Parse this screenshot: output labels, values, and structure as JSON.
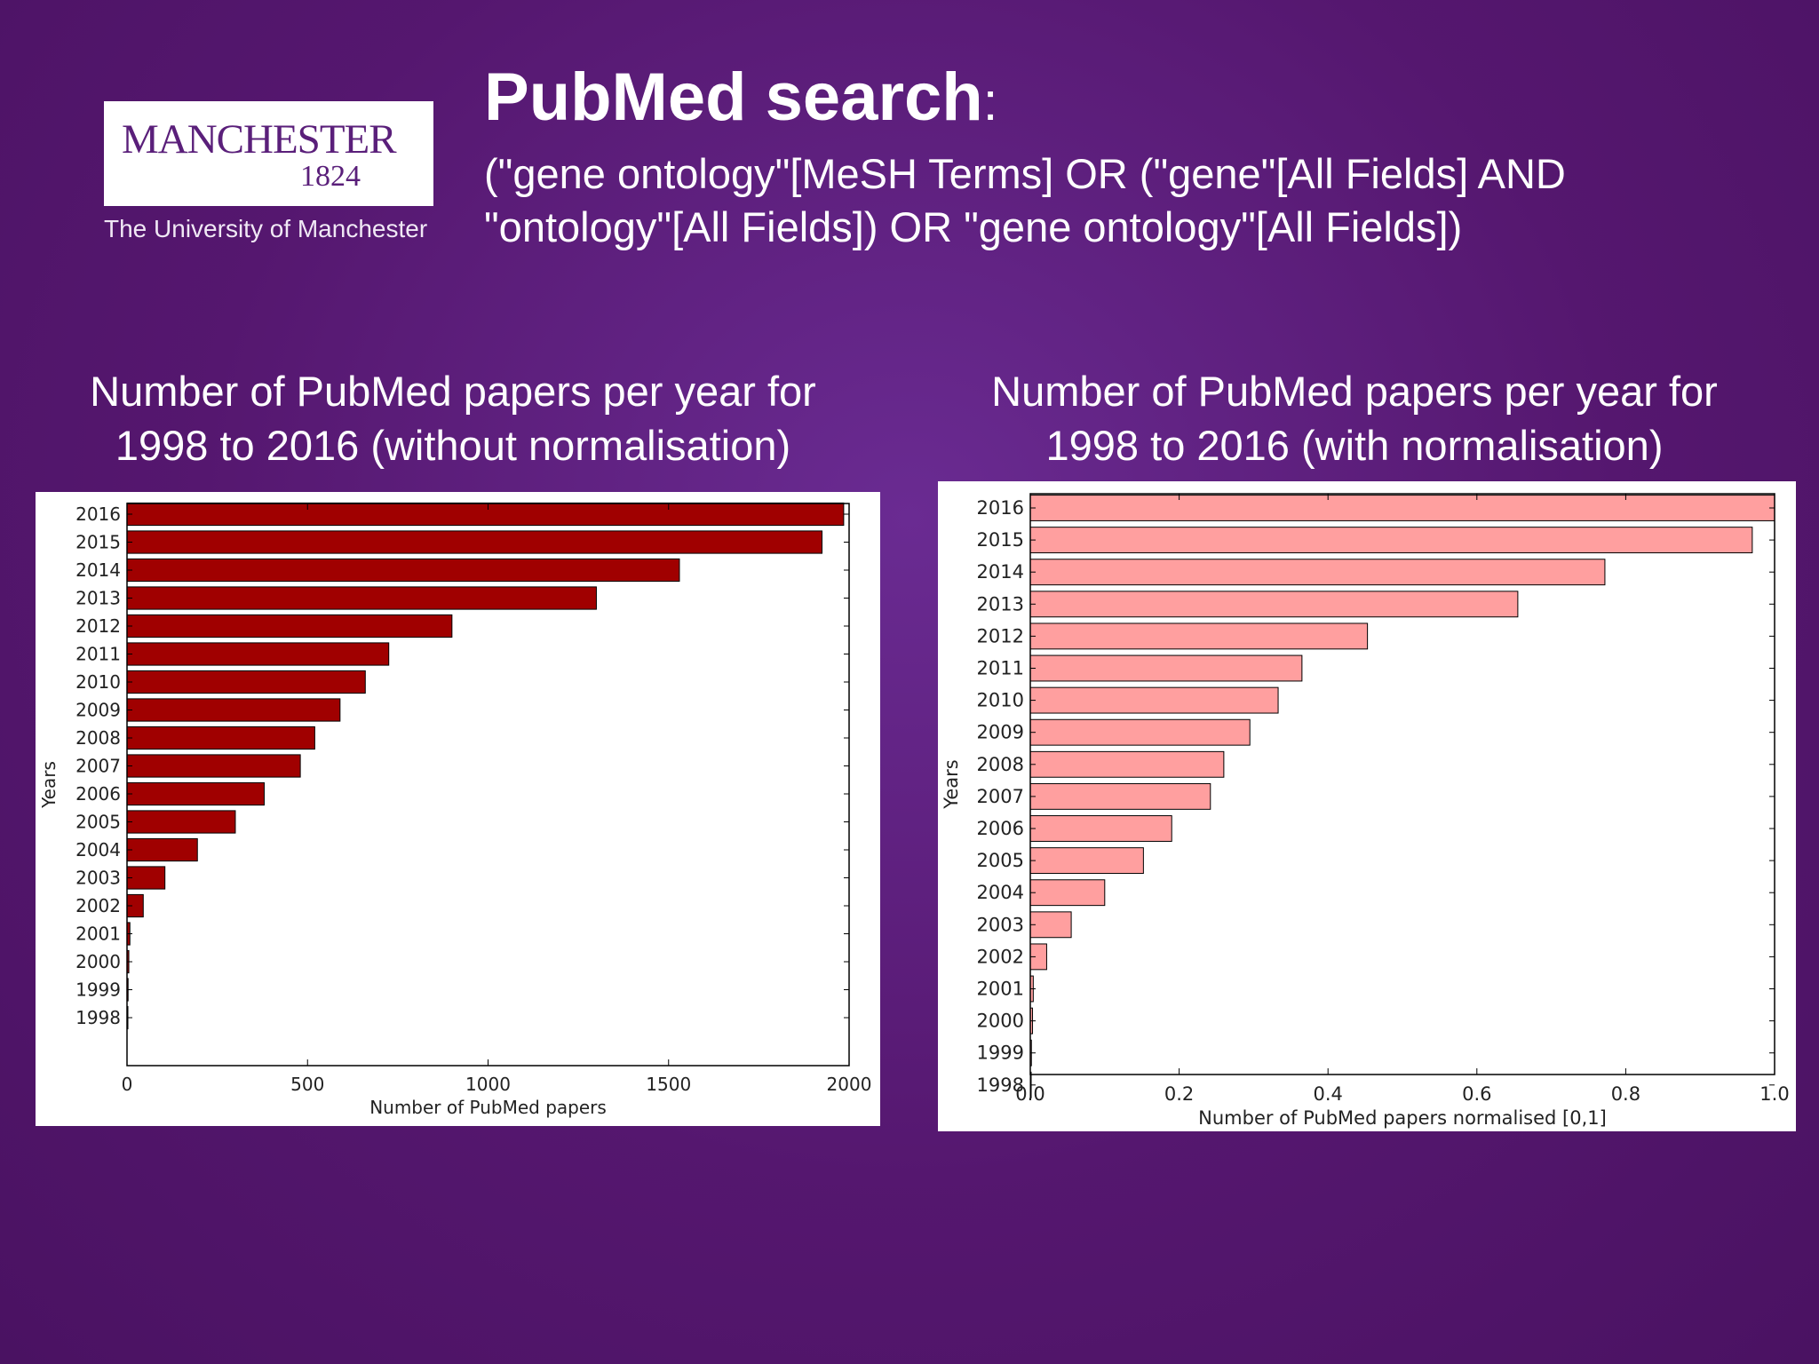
{
  "logo": {
    "name": "MANCHESTER",
    "year": "1824",
    "subtitle": "The University of Manchester"
  },
  "header": {
    "title": "PubMed search",
    "colon": ":",
    "query_line1": "(\"gene ontology\"[MeSH Terms] OR (\"gene\"[All Fields] AND",
    "query_line2": "\"ontology\"[All Fields]) OR \"gene ontology\"[All Fields])"
  },
  "chart_data": [
    {
      "type": "bar",
      "orientation": "horizontal",
      "title_line1": "Number of PubMed papers per year for",
      "title_line2": "1998 to 2016 (without normalisation)",
      "xlabel": "Number of PubMed papers",
      "ylabel": "Years",
      "xlim": [
        0,
        2000
      ],
      "xticks": [
        "0",
        "500",
        "1000",
        "1500",
        "2000"
      ],
      "bar_color": "#a00000",
      "categories": [
        "1998",
        "1999",
        "2000",
        "2001",
        "2002",
        "2003",
        "2004",
        "2005",
        "2006",
        "2007",
        "2008",
        "2009",
        "2010",
        "2011",
        "2012",
        "2013",
        "2014",
        "2015",
        "2016"
      ],
      "values": [
        1,
        3,
        5,
        8,
        45,
        105,
        195,
        300,
        380,
        480,
        520,
        590,
        660,
        725,
        900,
        1300,
        1530,
        1925,
        1985
      ]
    },
    {
      "type": "bar",
      "orientation": "horizontal",
      "title_line1": "Number of PubMed papers per year for",
      "title_line2": "1998 to 2016 (with normalisation)",
      "xlabel": "Number of PubMed papers normalised [0,1]",
      "ylabel": "Years",
      "xlim": [
        0,
        1.0
      ],
      "xticks": [
        "0.0",
        "0.2",
        "0.4",
        "0.6",
        "0.8",
        "1.0"
      ],
      "bar_color": "#ff9f9f",
      "categories": [
        "1998",
        "1999",
        "2000",
        "2001",
        "2002",
        "2003",
        "2004",
        "2005",
        "2006",
        "2007",
        "2008",
        "2009",
        "2010",
        "2011",
        "2012",
        "2013",
        "2014",
        "2015",
        "2016"
      ],
      "values": [
        0.0005,
        0.0015,
        0.003,
        0.004,
        0.022,
        0.055,
        0.1,
        0.152,
        0.19,
        0.242,
        0.26,
        0.295,
        0.333,
        0.365,
        0.453,
        0.655,
        0.772,
        0.97,
        1.0
      ]
    }
  ]
}
